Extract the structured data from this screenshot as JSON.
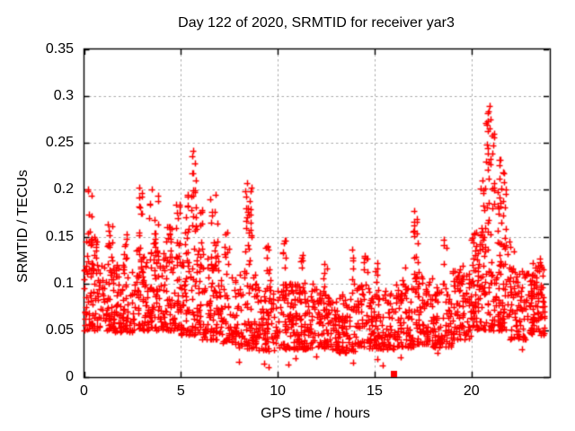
{
  "chart_data": {
    "type": "scatter",
    "title": "Day 122 of 2020, SRMTID for receiver yar3",
    "xlabel": "GPS time / hours",
    "ylabel": "SRMTID / TECUs",
    "xlim": [
      0,
      24
    ],
    "ylim": [
      0,
      0.35
    ],
    "xticks": {
      "values": [
        0,
        5,
        10,
        15,
        20
      ],
      "labels": [
        "0",
        "5",
        "10",
        "15",
        "20"
      ]
    },
    "yticks": {
      "values": [
        0,
        0.05,
        0.1,
        0.15,
        0.2,
        0.25,
        0.3,
        0.35
      ],
      "labels": [
        "0",
        "0.05",
        "0.1",
        "0.15",
        "0.2",
        "0.25",
        "0.3",
        "0.35"
      ]
    },
    "grid": true,
    "legend_position": "none",
    "marker": {
      "shape": "plus",
      "size": 7,
      "color": "#ff0000"
    },
    "colors": {
      "grid": "#a8a8a8",
      "axis": "#000000",
      "background": "#ffffff"
    },
    "series_generation": {
      "comment": "dense 24h scatter approximated by per-bin envelopes [x0,x1,count,ymin,ymax,skew] plus vertical spike columns [xcenter,spread,count,ymin,ymax]",
      "seed": 20122,
      "columns_per_hour": 13,
      "bins": [
        [
          0.0,
          0.7,
          70,
          0.05,
          0.15,
          1.5
        ],
        [
          0.7,
          1.6,
          70,
          0.05,
          0.125,
          1.6
        ],
        [
          1.6,
          2.6,
          80,
          0.048,
          0.12,
          1.6
        ],
        [
          2.6,
          3.3,
          55,
          0.05,
          0.13,
          1.5
        ],
        [
          3.3,
          4.1,
          65,
          0.05,
          0.135,
          1.5
        ],
        [
          4.1,
          5.0,
          75,
          0.05,
          0.13,
          1.6
        ],
        [
          5.0,
          6.0,
          85,
          0.045,
          0.14,
          1.6
        ],
        [
          6.0,
          7.0,
          80,
          0.04,
          0.13,
          1.6
        ],
        [
          7.0,
          8.0,
          75,
          0.035,
          0.11,
          1.6
        ],
        [
          8.0,
          9.0,
          75,
          0.03,
          0.115,
          1.5
        ],
        [
          9.0,
          10.0,
          80,
          0.028,
          0.1,
          1.5
        ],
        [
          10.0,
          11.0,
          85,
          0.03,
          0.1,
          1.5
        ],
        [
          11.0,
          12.0,
          85,
          0.03,
          0.1,
          1.6
        ],
        [
          12.0,
          13.0,
          85,
          0.03,
          0.092,
          1.6
        ],
        [
          13.0,
          14.0,
          85,
          0.026,
          0.088,
          1.6
        ],
        [
          14.0,
          15.0,
          80,
          0.03,
          0.098,
          1.6
        ],
        [
          15.0,
          16.0,
          80,
          0.03,
          0.094,
          1.6
        ],
        [
          16.0,
          17.0,
          80,
          0.032,
          0.1,
          1.6
        ],
        [
          17.0,
          18.0,
          80,
          0.035,
          0.108,
          1.5
        ],
        [
          18.0,
          19.0,
          80,
          0.032,
          0.1,
          1.6
        ],
        [
          19.0,
          20.0,
          85,
          0.04,
          0.115,
          1.5
        ],
        [
          20.0,
          21.0,
          95,
          0.05,
          0.155,
          1.3
        ],
        [
          21.0,
          22.0,
          90,
          0.05,
          0.145,
          1.4
        ],
        [
          22.0,
          23.0,
          70,
          0.04,
          0.115,
          1.6
        ],
        [
          23.0,
          23.8,
          85,
          0.045,
          0.12,
          1.3
        ]
      ],
      "spikes": [
        [
          0.3,
          0.25,
          14,
          0.12,
          0.202
        ],
        [
          1.35,
          0.3,
          12,
          0.12,
          0.17
        ],
        [
          2.1,
          0.25,
          10,
          0.11,
          0.155
        ],
        [
          2.85,
          0.3,
          16,
          0.11,
          0.205
        ],
        [
          3.6,
          0.5,
          22,
          0.11,
          0.205
        ],
        [
          4.4,
          0.3,
          12,
          0.11,
          0.165
        ],
        [
          4.85,
          0.25,
          12,
          0.11,
          0.19
        ],
        [
          5.3,
          0.2,
          12,
          0.11,
          0.2
        ],
        [
          5.7,
          0.3,
          20,
          0.12,
          0.242
        ],
        [
          6.1,
          0.25,
          10,
          0.11,
          0.18
        ],
        [
          6.7,
          0.4,
          16,
          0.11,
          0.195
        ],
        [
          7.35,
          0.25,
          8,
          0.1,
          0.155
        ],
        [
          8.5,
          0.35,
          26,
          0.11,
          0.215
        ],
        [
          9.5,
          0.3,
          10,
          0.09,
          0.145
        ],
        [
          10.35,
          0.2,
          9,
          0.09,
          0.152
        ],
        [
          11.3,
          0.25,
          7,
          0.09,
          0.135
        ],
        [
          12.45,
          0.2,
          6,
          0.085,
          0.124
        ],
        [
          13.9,
          0.15,
          7,
          0.08,
          0.14
        ],
        [
          14.55,
          0.25,
          8,
          0.085,
          0.13
        ],
        [
          15.15,
          0.2,
          7,
          0.085,
          0.128
        ],
        [
          16.55,
          0.25,
          7,
          0.085,
          0.122
        ],
        [
          17.15,
          0.3,
          18,
          0.1,
          0.178
        ],
        [
          18.65,
          0.2,
          6,
          0.085,
          0.15
        ],
        [
          19.5,
          0.3,
          8,
          0.08,
          0.12
        ],
        [
          20.6,
          0.25,
          16,
          0.13,
          0.225
        ],
        [
          20.88,
          0.22,
          22,
          0.15,
          0.302
        ],
        [
          21.1,
          0.2,
          12,
          0.13,
          0.26
        ],
        [
          21.45,
          0.25,
          16,
          0.12,
          0.252
        ],
        [
          21.7,
          0.2,
          10,
          0.11,
          0.22
        ],
        [
          22.1,
          0.2,
          6,
          0.08,
          0.14
        ],
        [
          23.35,
          0.4,
          12,
          0.07,
          0.128
        ]
      ],
      "low_points": [
        [
          7.98,
          0.016
        ],
        [
          9.3,
          0.014
        ],
        [
          9.55,
          0.011
        ],
        [
          10.55,
          0.013
        ],
        [
          10.9,
          0.02
        ],
        [
          12.0,
          0.022
        ],
        [
          13.9,
          0.015
        ],
        [
          15.15,
          0.019
        ],
        [
          15.4,
          0.012
        ],
        [
          16.35,
          0.021
        ],
        [
          18.25,
          0.026
        ],
        [
          22.6,
          0.03
        ]
      ]
    },
    "special_points": [
      {
        "x": 16.02,
        "y": 0.003,
        "marker": "filled-square",
        "size": 7,
        "color": "#ff0000"
      }
    ]
  }
}
